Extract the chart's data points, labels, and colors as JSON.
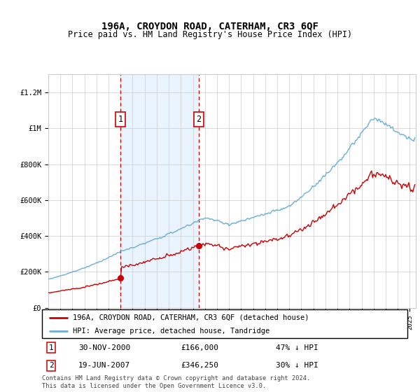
{
  "title": "196A, CROYDON ROAD, CATERHAM, CR3 6QF",
  "subtitle": "Price paid vs. HM Land Registry's House Price Index (HPI)",
  "ylabel_values": [
    "£0",
    "£200K",
    "£400K",
    "£600K",
    "£800K",
    "£1M",
    "£1.2M"
  ],
  "ytick_values": [
    0,
    200000,
    400000,
    600000,
    800000,
    1000000,
    1200000
  ],
  "ylim": [
    0,
    1300000
  ],
  "hpi_color": "#6baed6",
  "price_color": "#cc0000",
  "bg_shading_color": "#ddeeff",
  "vline_color": "#cc0000",
  "marker1_month": 72,
  "marker1_price": 166000,
  "marker2_month": 150,
  "marker2_price": 346250,
  "legend_line1": "196A, CROYDON ROAD, CATERHAM, CR3 6QF (detached house)",
  "legend_line2": "HPI: Average price, detached house, Tandridge",
  "marker1_date_str": "30-NOV-2000",
  "marker1_price_str": "£166,000",
  "marker1_pct_str": "47% ↓ HPI",
  "marker2_date_str": "19-JUN-2007",
  "marker2_price_str": "£346,250",
  "marker2_pct_str": "30% ↓ HPI",
  "footnote": "Contains HM Land Registry data © Crown copyright and database right 2024.\nThis data is licensed under the Open Government Licence v3.0."
}
